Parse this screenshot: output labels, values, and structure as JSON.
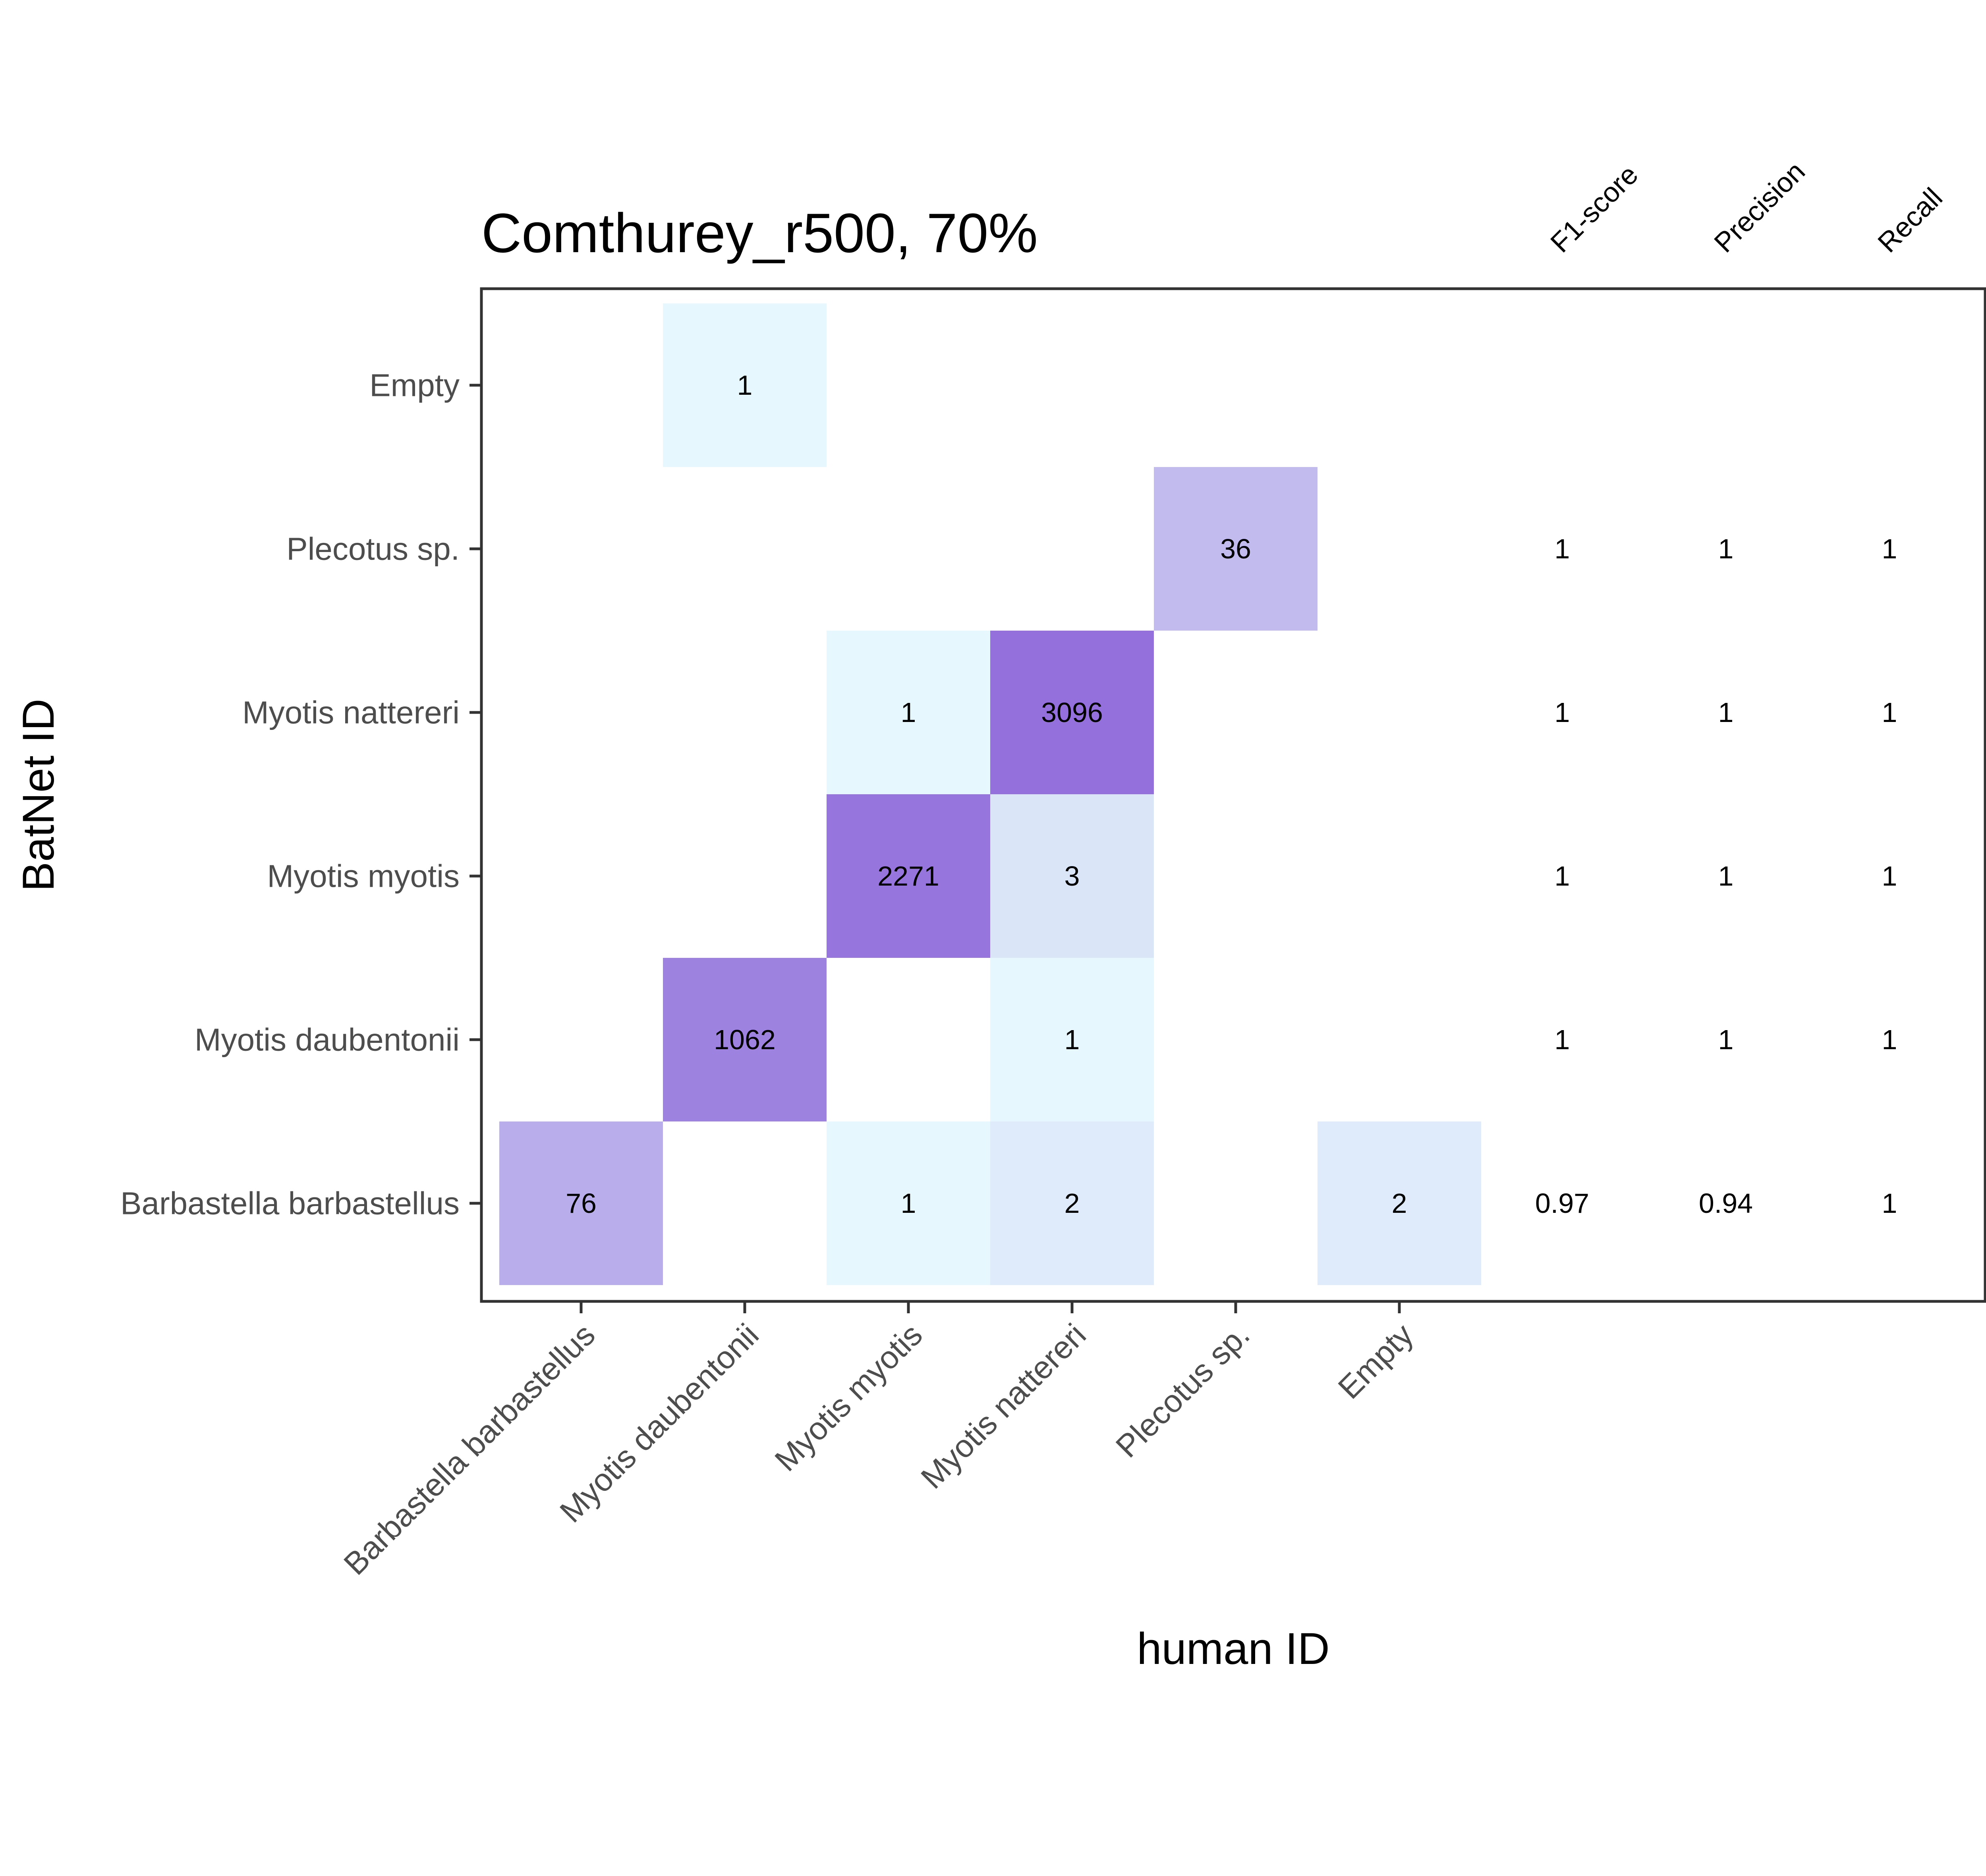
{
  "chart_data": {
    "type": "heatmap",
    "title": "Comthurey_r500, 70%",
    "xlabel": "human ID",
    "ylabel": "BatNet ID",
    "categories": [
      "Barbastella barbastellus",
      "Myotis daubentonii",
      "Myotis myotis",
      "Myotis nattereri",
      "Plecotus sp.",
      "Empty"
    ],
    "cells": [
      {
        "x": "Barbastella barbastellus",
        "y": "Barbastella barbastellus",
        "value": 76
      },
      {
        "x": "Myotis myotis",
        "y": "Barbastella barbastellus",
        "value": 1
      },
      {
        "x": "Myotis nattereri",
        "y": "Barbastella barbastellus",
        "value": 2
      },
      {
        "x": "Empty",
        "y": "Barbastella barbastellus",
        "value": 2
      },
      {
        "x": "Myotis daubentonii",
        "y": "Myotis daubentonii",
        "value": 1062
      },
      {
        "x": "Myotis nattereri",
        "y": "Myotis daubentonii",
        "value": 1
      },
      {
        "x": "Myotis myotis",
        "y": "Myotis myotis",
        "value": 2271
      },
      {
        "x": "Myotis nattereri",
        "y": "Myotis myotis",
        "value": 3
      },
      {
        "x": "Myotis myotis",
        "y": "Myotis nattereri",
        "value": 1
      },
      {
        "x": "Myotis nattereri",
        "y": "Myotis nattereri",
        "value": 3096
      },
      {
        "x": "Plecotus sp.",
        "y": "Plecotus sp.",
        "value": 36
      },
      {
        "x": "Myotis daubentonii",
        "y": "Empty",
        "value": 1
      }
    ],
    "metric_headers": [
      "F1-score",
      "Precision",
      "Recall"
    ],
    "metrics": [
      {
        "row": "Barbastella barbastellus",
        "values": [
          "0.97",
          "0.94",
          "1"
        ]
      },
      {
        "row": "Myotis daubentonii",
        "values": [
          "1",
          "1",
          "1"
        ]
      },
      {
        "row": "Myotis myotis",
        "values": [
          "1",
          "1",
          "1"
        ]
      },
      {
        "row": "Myotis nattereri",
        "values": [
          "1",
          "1",
          "1"
        ]
      },
      {
        "row": "Plecotus sp.",
        "values": [
          "1",
          "1",
          "1"
        ]
      }
    ],
    "color_scale": {
      "low": "#e6f7fd",
      "high": "#9370db",
      "scale": "log"
    },
    "grid": false,
    "legend": "none"
  }
}
